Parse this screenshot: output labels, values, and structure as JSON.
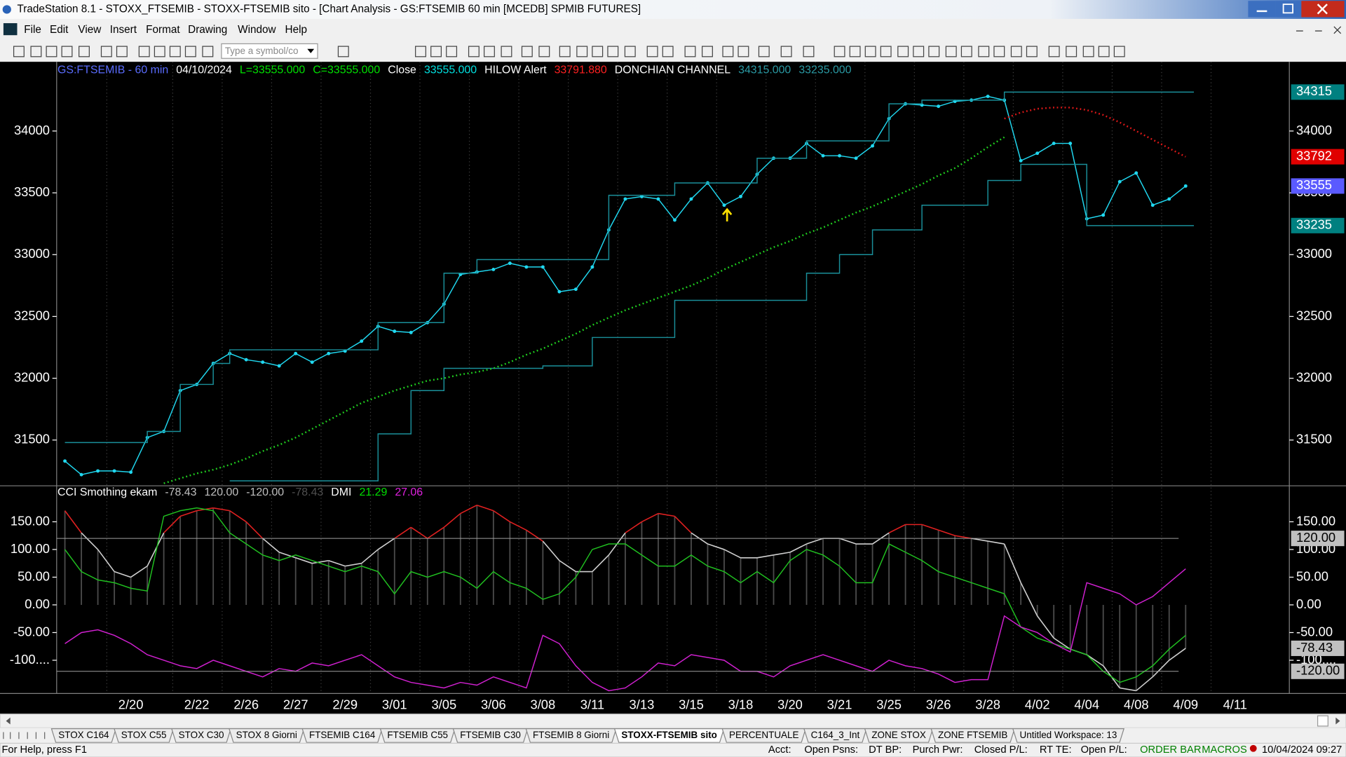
{
  "window": {
    "title": "TradeStation 8.1 - STOXX_FTSEMIB - STOXX-FTSEMIB sito - [Chart Analysis - GS:FTSEMIB  60 min  [MCEDB] SPMIB FUTURES]",
    "menu": [
      "File",
      "Edit",
      "View",
      "Insert",
      "Format",
      "Drawing",
      "Window",
      "Help"
    ],
    "symbol_box": "Type a symbol/co"
  },
  "chart_data": [
    {
      "type": "line",
      "header": [
        {
          "text": "GS:FTSEMIB - 60 min",
          "color": "#5a6cff"
        },
        {
          "text": "04/10/2024",
          "color": "#ffffff"
        },
        {
          "text": "L=33555.000",
          "color": "#00e000"
        },
        {
          "text": "C=33555.000",
          "color": "#00e000"
        },
        {
          "text": "Close",
          "color": "#ffffff"
        },
        {
          "text": "33555.000",
          "color": "#00e0e0"
        },
        {
          "text": "HILOW Alert",
          "color": "#ffffff"
        },
        {
          "text": "33791.880",
          "color": "#ff2020"
        },
        {
          "text": "DONCHIAN CHANNEL",
          "color": "#ffffff"
        },
        {
          "text": "34315.000",
          "color": "#2a9aa4"
        },
        {
          "text": "33235.000",
          "color": "#2a9aa4"
        }
      ],
      "categories": [
        null,
        null,
        null,
        null,
        "2/20",
        null,
        null,
        null,
        "2/22",
        null,
        null,
        "2/26",
        null,
        null,
        "2/27",
        null,
        null,
        "2/29",
        null,
        null,
        "3/01",
        null,
        null,
        "3/05",
        null,
        null,
        "3/06",
        null,
        null,
        "3/08",
        null,
        null,
        "3/11",
        null,
        null,
        "3/13",
        null,
        null,
        "3/15",
        null,
        null,
        "3/18",
        null,
        null,
        "3/20",
        null,
        null,
        "3/21",
        null,
        null,
        "3/25",
        null,
        null,
        "3/26",
        null,
        null,
        "3/28",
        null,
        null,
        "4/02",
        null,
        null,
        "4/04",
        null,
        null,
        "4/08",
        null,
        null,
        "4/09",
        null,
        null,
        "4/11",
        null
      ],
      "ylim": [
        31130,
        34560
      ],
      "yticks": [
        31500,
        32000,
        32500,
        33000,
        33500,
        34000
      ],
      "series": [
        {
          "color": "#20d8f0",
          "markers": true,
          "values": [
            31330,
            31220,
            31250,
            31250,
            31240,
            31520,
            31570,
            31900,
            31950,
            32120,
            32200,
            32150,
            32130,
            32100,
            32200,
            32130,
            32200,
            32220,
            32300,
            32420,
            32380,
            32370,
            32450,
            32600,
            32840,
            32860,
            32880,
            32930,
            32900,
            32900,
            32700,
            32720,
            32900,
            33200,
            33450,
            33470,
            33450,
            33280,
            33450,
            33580,
            33400,
            33470,
            33650,
            33780,
            33780,
            33900,
            33800,
            33800,
            33780,
            33880,
            34100,
            34220,
            34210,
            34200,
            34240,
            34250,
            34280,
            34250,
            33760,
            33820,
            33900,
            33900,
            33290,
            33320,
            33590,
            33660,
            33400,
            33450,
            33555,
            null,
            null,
            null,
            null
          ]
        },
        {
          "color": "#1a8f9a",
          "step": true,
          "values": [
            31480,
            31480,
            31480,
            31480,
            31480,
            31570,
            31570,
            31950,
            31950,
            32120,
            32230,
            32230,
            32230,
            32230,
            32230,
            32230,
            32230,
            32230,
            32230,
            32450,
            32450,
            32450,
            32450,
            32850,
            32850,
            32960,
            32960,
            32960,
            32960,
            32960,
            32960,
            32960,
            32960,
            33480,
            33480,
            33480,
            33480,
            33580,
            33580,
            33580,
            33580,
            33580,
            33780,
            33780,
            33780,
            33920,
            33920,
            33920,
            33920,
            33920,
            34220,
            34220,
            34250,
            34250,
            34250,
            34250,
            34250,
            34315,
            34315,
            34315,
            34315,
            34315,
            34315,
            34315,
            34315,
            34315,
            34315,
            34315,
            34315,
            null,
            null,
            null,
            null
          ]
        },
        {
          "color": "#1a8f9a",
          "step": true,
          "values": [
            null,
            null,
            null,
            null,
            null,
            null,
            null,
            null,
            null,
            null,
            31170,
            31170,
            31170,
            31170,
            31170,
            31170,
            31170,
            31170,
            31170,
            31550,
            31550,
            31900,
            31900,
            32080,
            32080,
            32080,
            32080,
            32080,
            32080,
            32100,
            32100,
            32100,
            32330,
            32330,
            32330,
            32330,
            32330,
            32630,
            32630,
            32630,
            32630,
            32630,
            32630,
            32630,
            32630,
            32850,
            32850,
            33000,
            33000,
            33200,
            33200,
            33200,
            33400,
            33400,
            33400,
            33400,
            33600,
            33600,
            33730,
            33730,
            33730,
            33730,
            33235,
            33235,
            33235,
            33235,
            33235,
            33235,
            33235,
            null,
            null,
            null,
            null
          ]
        },
        {
          "color": "#20d020",
          "dotted": true,
          "values": [
            null,
            null,
            null,
            null,
            null,
            null,
            31150,
            31190,
            31230,
            31260,
            31300,
            31350,
            31410,
            31460,
            31520,
            31590,
            31660,
            31730,
            31800,
            31850,
            31900,
            31940,
            31980,
            32000,
            32030,
            32050,
            32080,
            32130,
            32190,
            32240,
            32300,
            32360,
            32430,
            32490,
            32550,
            32600,
            32650,
            32700,
            32750,
            32810,
            32880,
            32940,
            33000,
            33060,
            33110,
            33170,
            33220,
            33280,
            33340,
            33390,
            33450,
            33510,
            33570,
            33640,
            33700,
            33780,
            33870,
            33950,
            null,
            null,
            null,
            null,
            null,
            null,
            null,
            null,
            null,
            null,
            null,
            null,
            null,
            null,
            null
          ]
        },
        {
          "color": "#e01818",
          "dotted": true,
          "values": [
            null,
            null,
            null,
            null,
            null,
            null,
            null,
            null,
            null,
            null,
            null,
            null,
            null,
            null,
            null,
            null,
            null,
            null,
            null,
            null,
            null,
            null,
            null,
            null,
            null,
            null,
            null,
            null,
            null,
            null,
            null,
            null,
            null,
            null,
            null,
            null,
            null,
            null,
            null,
            null,
            null,
            null,
            null,
            null,
            null,
            null,
            null,
            null,
            null,
            null,
            null,
            null,
            null,
            null,
            null,
            null,
            null,
            34100,
            34150,
            34180,
            34190,
            34190,
            34170,
            34130,
            34070,
            34000,
            33930,
            33860,
            33792,
            null,
            null,
            null,
            null
          ]
        }
      ],
      "price_labels": [
        {
          "value": 34315,
          "label": "34315",
          "color": "#008080"
        },
        {
          "value": 33792,
          "label": "33792",
          "color": "#e00000"
        },
        {
          "value": 33555,
          "label": "33555",
          "color": "#5a5aff"
        },
        {
          "value": 33235,
          "label": "33235",
          "color": "#008080"
        }
      ]
    },
    {
      "type": "line",
      "header": [
        {
          "text": "CCI Smothing ekam",
          "color": "#ffffff"
        },
        {
          "text": "-78.43",
          "color": "#c0c0c0"
        },
        {
          "text": "120.00",
          "color": "#c0c0c0"
        },
        {
          "text": "-120.00",
          "color": "#c0c0c0"
        },
        {
          "text": "-78.43",
          "color": "#505050"
        },
        {
          "text": "DMI",
          "color": "#ffffff"
        },
        {
          "text": "21.29",
          "color": "#00e000"
        },
        {
          "text": "27.06",
          "color": "#e020e0"
        }
      ],
      "ylim": [
        -160,
        215
      ],
      "yticks": [
        {
          "value": 150,
          "label": "150.00"
        },
        {
          "value": 100,
          "label": "100.00"
        },
        {
          "value": 50,
          "label": "50.00"
        },
        {
          "value": 0,
          "label": "0.00"
        },
        {
          "value": -50,
          "label": "-50.00"
        },
        {
          "value": -100,
          "label": "-100...."
        }
      ],
      "levels": [
        {
          "value": 120,
          "label": "120.00"
        },
        {
          "value": -120,
          "label": "-120.00"
        }
      ],
      "price_labels": [
        {
          "value": -78.43,
          "label": "-78.43",
          "color": "#c0c0c0"
        }
      ],
      "series": [
        {
          "color": "#d0d0d0",
          "high_color": "#e02020",
          "histogram": true,
          "values": [
            170,
            130,
            100,
            60,
            50,
            70,
            130,
            160,
            170,
            175,
            170,
            150,
            120,
            95,
            85,
            75,
            80,
            70,
            75,
            100,
            120,
            140,
            120,
            140,
            165,
            180,
            170,
            150,
            135,
            115,
            80,
            60,
            60,
            90,
            130,
            150,
            165,
            160,
            130,
            110,
            100,
            85,
            85,
            90,
            95,
            110,
            120,
            120,
            110,
            110,
            130,
            145,
            145,
            135,
            125,
            120,
            115,
            110,
            40,
            -20,
            -60,
            -80,
            -90,
            -110,
            -150,
            -155,
            -130,
            -100,
            -78.43,
            null,
            null,
            null,
            null
          ]
        },
        {
          "color": "#20c020",
          "values": [
            100,
            60,
            45,
            40,
            30,
            25,
            160,
            170,
            175,
            170,
            130,
            110,
            90,
            80,
            90,
            80,
            70,
            60,
            70,
            60,
            20,
            60,
            50,
            60,
            50,
            30,
            60,
            40,
            30,
            10,
            20,
            50,
            100,
            110,
            110,
            90,
            70,
            70,
            90,
            70,
            60,
            40,
            60,
            40,
            80,
            100,
            90,
            70,
            40,
            40,
            110,
            95,
            80,
            60,
            50,
            40,
            30,
            20,
            -40,
            -60,
            -70,
            -80,
            -90,
            -120,
            -140,
            -130,
            -110,
            -80,
            -55,
            null,
            null,
            null,
            null
          ]
        },
        {
          "color": "#d020d0",
          "values": [
            -70,
            -50,
            -45,
            -55,
            -70,
            -90,
            -100,
            -110,
            -115,
            -100,
            -110,
            -120,
            -130,
            -115,
            -120,
            -105,
            -110,
            -100,
            -90,
            -110,
            -130,
            -140,
            -145,
            -150,
            -140,
            -145,
            -130,
            -140,
            -150,
            -55,
            -70,
            -110,
            -140,
            -155,
            -150,
            -130,
            -105,
            -110,
            -90,
            -95,
            -100,
            -120,
            -120,
            -130,
            -110,
            -100,
            -90,
            -100,
            -110,
            -120,
            -100,
            -110,
            -115,
            -125,
            -140,
            -135,
            -135,
            -20,
            -40,
            -50,
            -70,
            -85,
            40,
            30,
            20,
            0,
            15,
            40,
            65,
            null,
            null,
            null,
            null
          ]
        }
      ]
    }
  ],
  "tabs": {
    "items": [
      "STOX C164",
      "STOX C55",
      "STOX  C30",
      "STOX  8 Giorni",
      "FTSEMIB C164",
      "FTSEMIB C55",
      "FTSEMIB C30",
      "FTSEMIB  8 Giorni",
      "STOXX-FTSEMIB sito",
      "PERCENTUALE",
      "C164_3_Int",
      "ZONE STOX",
      "ZONE FTSEMIB",
      "Untitled Workspace:  13"
    ],
    "active": 8
  },
  "status": {
    "help": "For Help, press F1",
    "fields": [
      "Acct:",
      "Open Psns:",
      "DT BP:",
      "Purch Pwr:",
      "Closed P/L:",
      "RT TE:",
      "Open P/L:"
    ],
    "order_bar": "ORDER BAR",
    "macros": "MACROS",
    "datetime": "10/04/2024 09:27"
  }
}
